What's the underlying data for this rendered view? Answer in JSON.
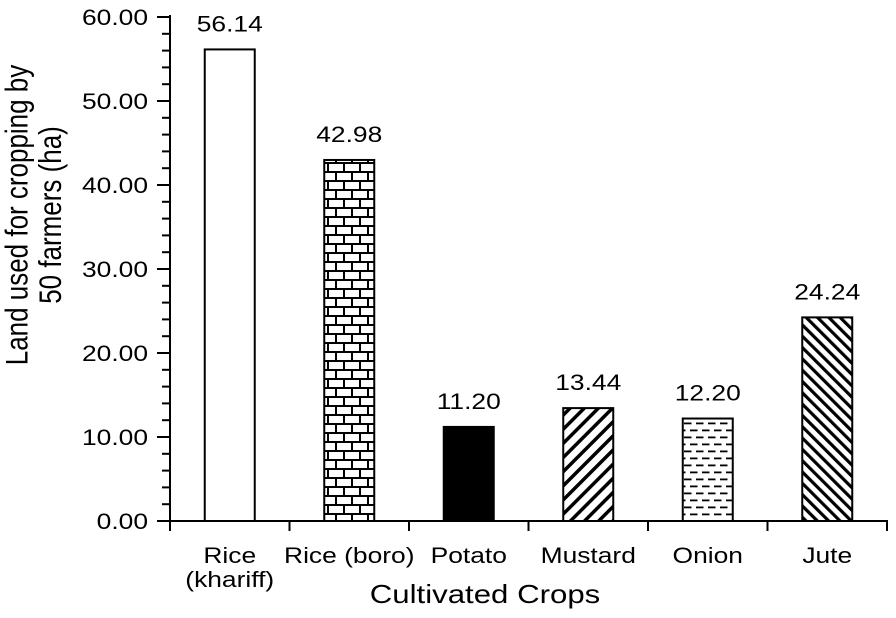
{
  "figure": {
    "background": "#ffffff",
    "ink": "#000000"
  },
  "chart_data": {
    "type": "bar",
    "title": "",
    "xlabel": "Cultivated Crops",
    "ylabel": "Land used for cropping by 50 farmers (ha)",
    "ylabel_lines": [
      "Land used for cropping by",
      "50 farmers (ha)"
    ],
    "categories": [
      "Rice (khariff)",
      "Rice (boro)",
      "Potato",
      "Mustard",
      "Onion",
      "Jute"
    ],
    "category_label_lines": [
      [
        "Rice",
        "(khariff)"
      ],
      [
        "Rice (boro)"
      ],
      [
        "Potato"
      ],
      [
        "Mustard"
      ],
      [
        "Onion"
      ],
      [
        "Jute"
      ]
    ],
    "values": [
      56.14,
      42.98,
      11.2,
      13.44,
      12.2,
      24.24
    ],
    "value_labels": [
      "56.14",
      "42.98",
      "11.20",
      "13.44",
      "12.20",
      "24.24"
    ],
    "bar_styles": [
      "outline-white",
      "brick",
      "solid-black",
      "hatch-forward",
      "dash-rows",
      "hatch-back"
    ],
    "ylim": [
      0,
      60
    ],
    "ytick_step": 10,
    "yminor_step": 2,
    "ytick_labels": [
      "0.00",
      "10.00",
      "20.00",
      "30.00",
      "40.00",
      "50.00",
      "60.00"
    ],
    "grid": "off",
    "legend": "none"
  }
}
